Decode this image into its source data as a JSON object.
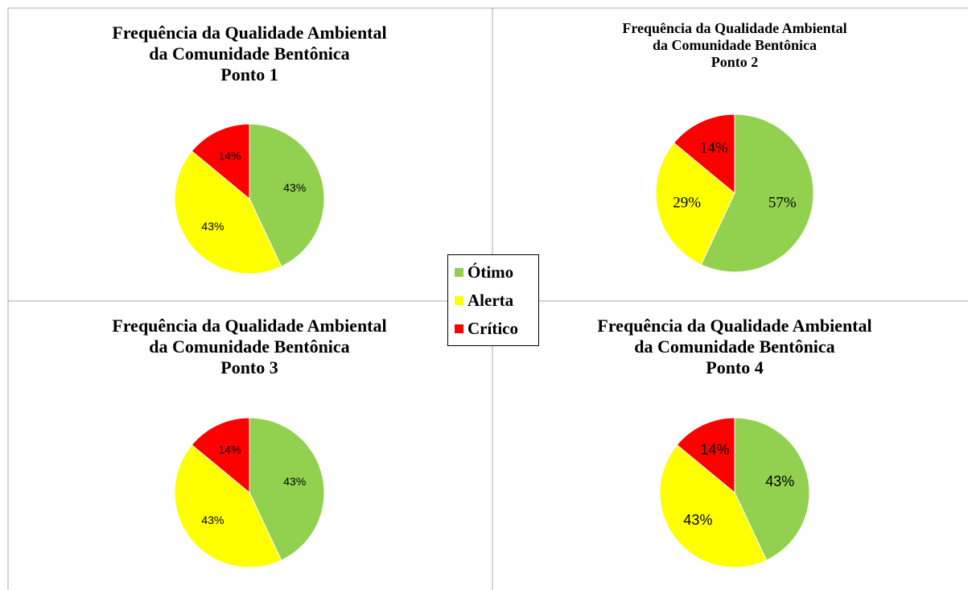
{
  "chart_data": [
    {
      "type": "pie",
      "title": "Frequência da Qualidade Ambiental\nda Comunidade Bentônica\nPonto 1",
      "categories": [
        "Ótimo",
        "Alerta",
        "Crítico"
      ],
      "values": [
        43,
        43,
        14
      ],
      "value_labels": [
        "43%",
        "43%",
        "14%"
      ],
      "colors": [
        "#92d050",
        "#ffff00",
        "#ff0000"
      ],
      "legend": "center"
    },
    {
      "type": "pie",
      "title": "Frequência da Qualidade Ambiental\nda Comunidade Bentônica\nPonto 2",
      "categories": [
        "Ótimo",
        "Alerta",
        "Crítico"
      ],
      "values": [
        57,
        29,
        14
      ],
      "value_labels": [
        "57%",
        "29%",
        "14%"
      ],
      "colors": [
        "#92d050",
        "#ffff00",
        "#ff0000"
      ]
    },
    {
      "type": "pie",
      "title": "Frequência da Qualidade Ambiental\nda Comunidade Bentônica\nPonto 3",
      "categories": [
        "Ótimo",
        "Alerta",
        "Crítico"
      ],
      "values": [
        43,
        43,
        14
      ],
      "value_labels": [
        "43%",
        "43%",
        "14%"
      ],
      "colors": [
        "#92d050",
        "#ffff00",
        "#ff0000"
      ]
    },
    {
      "type": "pie",
      "title": "Frequência da Qualidade Ambiental\nda Comunidade Bentônica\nPonto 4",
      "categories": [
        "Ótimo",
        "Alerta",
        "Crítico"
      ],
      "values": [
        43,
        43,
        14
      ],
      "value_labels": [
        "43%",
        "43%",
        "14%"
      ],
      "colors": [
        "#92d050",
        "#ffff00",
        "#ff0000"
      ]
    }
  ]
}
